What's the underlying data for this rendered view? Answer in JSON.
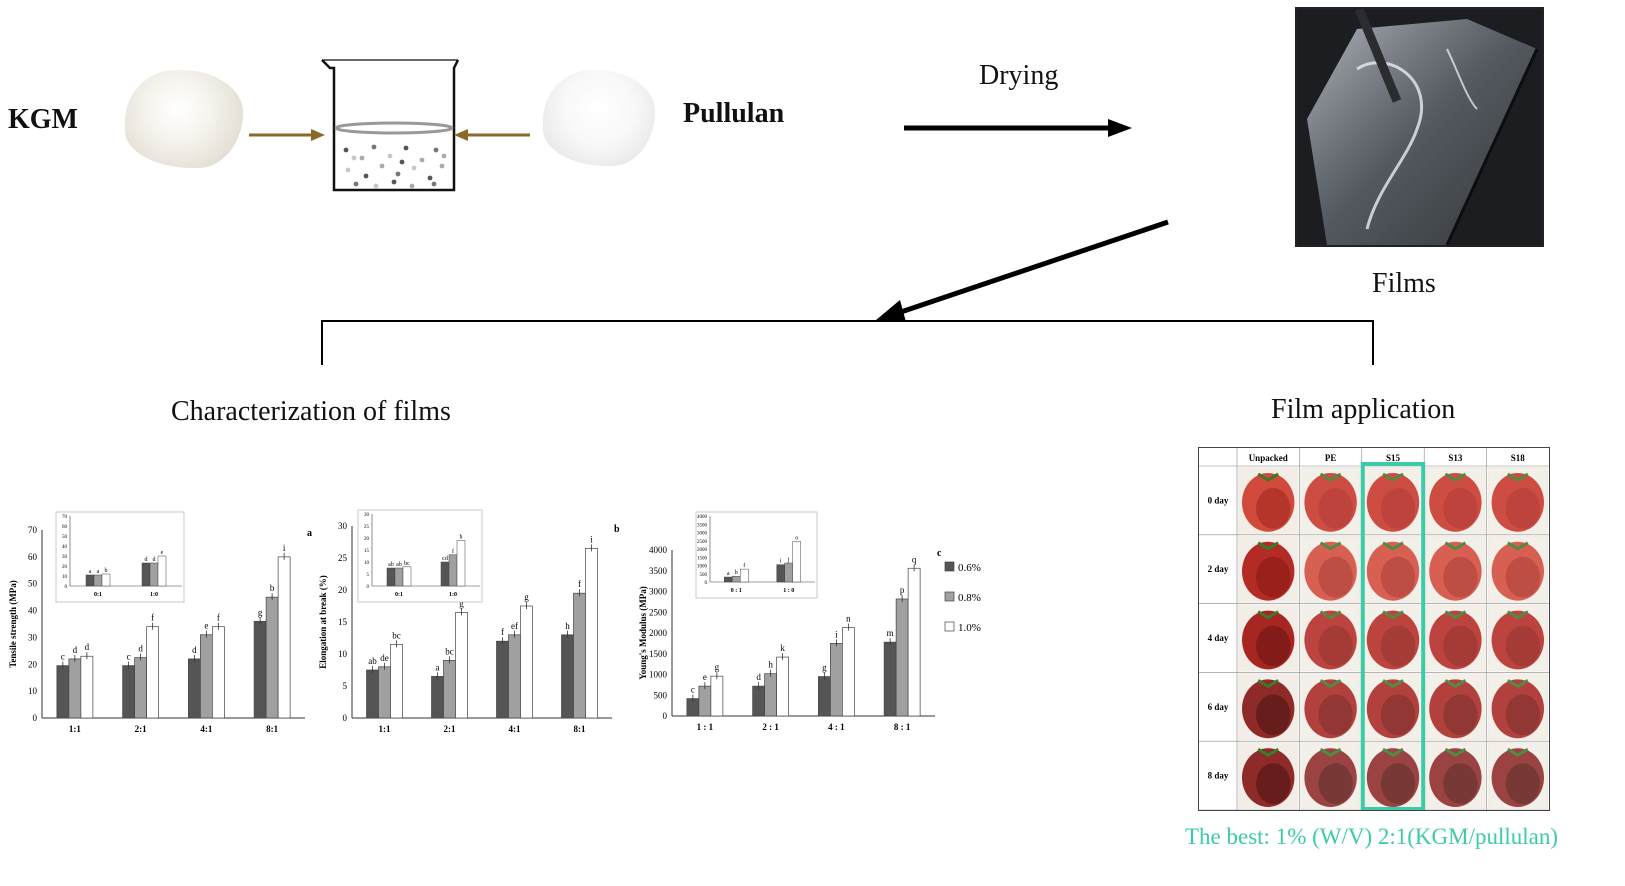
{
  "labels": {
    "kgm": "KGM",
    "pullulan": "Pullulan",
    "drying": "Drying",
    "films": "Films",
    "characterization": "Characterization of films",
    "application": "Film application",
    "best": "The best: 1% (W/V) 2:1(KGM/pullulan)"
  },
  "colors": {
    "arrow_brown": "#8a6a2b",
    "bar_dark": "#555555",
    "bar_mid": "#a0a0a0",
    "bar_light": "#ffffff",
    "highlight": "#3ccba9"
  },
  "legend": [
    "0.6%",
    "0.8%",
    "1.0%"
  ],
  "chart_data": [
    {
      "type": "bar",
      "panel": "a",
      "ylabel": "Tensile strength (MPa)",
      "categories": [
        "1:1",
        "2:1",
        "4:1",
        "8:1"
      ],
      "series": [
        {
          "name": "0.6%",
          "values": [
            19.5,
            19.5,
            22,
            36
          ],
          "letters": [
            "c",
            "c",
            "d",
            "g"
          ]
        },
        {
          "name": "0.8%",
          "values": [
            22,
            22.5,
            31,
            45
          ],
          "letters": [
            "d",
            "d",
            "e",
            "b"
          ]
        },
        {
          "name": "1.0%",
          "values": [
            23,
            34,
            34,
            60
          ],
          "letters": [
            "d",
            "f",
            "f",
            "i"
          ]
        }
      ],
      "yticks": [
        0,
        10,
        20,
        30,
        40,
        50,
        60,
        70
      ],
      "ylim": [
        0,
        70
      ],
      "inset": {
        "categories": [
          "0:1",
          "1:0"
        ],
        "yticks": [
          0,
          10,
          20,
          30,
          40,
          50,
          60,
          70
        ],
        "ylim": [
          0,
          70
        ],
        "series": [
          {
            "values": [
              11,
              23
            ],
            "letters": [
              "a",
              "d"
            ]
          },
          {
            "values": [
              11,
              23
            ],
            "letters": [
              "a",
              "d"
            ]
          },
          {
            "values": [
              12,
              30
            ],
            "letters": [
              "b",
              "e"
            ]
          }
        ]
      }
    },
    {
      "type": "bar",
      "panel": "b",
      "ylabel": "Elongation at break (%)",
      "categories": [
        "1:1",
        "2:1",
        "4:1",
        "8:1"
      ],
      "series": [
        {
          "name": "0.6%",
          "values": [
            7.5,
            6.5,
            12,
            13
          ],
          "letters": [
            "ab",
            "a",
            "f",
            "h"
          ]
        },
        {
          "name": "0.8%",
          "values": [
            8,
            9,
            13,
            19.5
          ],
          "letters": [
            "de",
            "bc",
            "ef",
            "f"
          ]
        },
        {
          "name": "1.0%",
          "values": [
            11.5,
            16.5,
            17.5,
            26.5
          ],
          "letters": [
            "bc",
            "g",
            "g",
            "i"
          ]
        }
      ],
      "yticks": [
        0,
        5,
        10,
        15,
        20,
        25,
        30
      ],
      "ylim": [
        0,
        30
      ],
      "inset": {
        "categories": [
          "0:1",
          "1:0"
        ],
        "yticks": [
          0,
          5,
          10,
          15,
          20,
          25,
          30
        ],
        "ylim": [
          0,
          30
        ],
        "series": [
          {
            "values": [
              7.5,
              10
            ],
            "letters": [
              "ab",
              "cd"
            ]
          },
          {
            "values": [
              7.5,
              13
            ],
            "letters": [
              "ab",
              "f"
            ]
          },
          {
            "values": [
              8,
              19
            ],
            "letters": [
              "bc",
              "h"
            ]
          }
        ]
      }
    },
    {
      "type": "bar",
      "panel": "c",
      "ylabel": "Young's Modulus (MPa)",
      "categories": [
        "1 : 1",
        "2 : 1",
        "4 : 1",
        "8 : 1"
      ],
      "series": [
        {
          "name": "0.6%",
          "values": [
            420,
            720,
            950,
            1780
          ],
          "letters": [
            "c",
            "d",
            "g",
            "m"
          ]
        },
        {
          "name": "0.8%",
          "values": [
            720,
            1020,
            1750,
            2820
          ],
          "letters": [
            "e",
            "h",
            "i",
            "p"
          ]
        },
        {
          "name": "1.0%",
          "values": [
            960,
            1420,
            2130,
            3560
          ],
          "letters": [
            "g",
            "k",
            "n",
            "q"
          ]
        }
      ],
      "yticks": [
        0,
        500,
        1000,
        1500,
        2000,
        2500,
        3000,
        3500,
        4000
      ],
      "ylim": [
        0,
        4000
      ],
      "inset": {
        "categories": [
          "0 : 1",
          "1 : 0"
        ],
        "yticks": [
          0,
          500,
          1000,
          1500,
          2000,
          2500,
          3000,
          3500,
          4000
        ],
        "ylim": [
          0,
          4000
        ],
        "series": [
          {
            "values": [
              300,
              1050
            ],
            "letters": [
              "a",
              "i"
            ]
          },
          {
            "values": [
              350,
              1150
            ],
            "letters": [
              "b",
              "j"
            ]
          },
          {
            "values": [
              780,
              2450
            ],
            "letters": [
              "f",
              "o"
            ]
          }
        ]
      }
    }
  ],
  "grid": {
    "columns": [
      "Unpacked",
      "PE",
      "S15",
      "S13",
      "S18"
    ],
    "rows": [
      "0 day",
      "2 day",
      "4 day",
      "6 day",
      "8 day"
    ],
    "highlight_column": "S15"
  }
}
